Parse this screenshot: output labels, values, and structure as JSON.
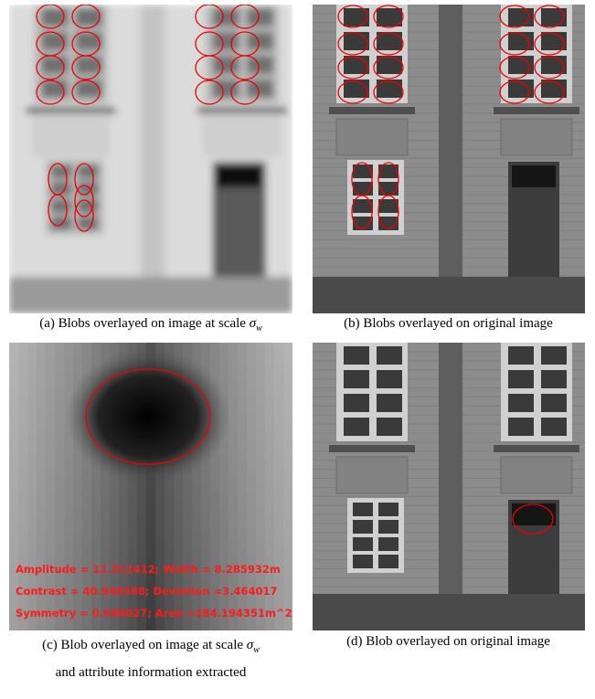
{
  "panels": [
    {
      "caption": {
        "text": "(a) Blobs overlayed on image at scale ",
        "symbol": "σ",
        "subscript": "w"
      }
    },
    {
      "caption": {
        "text": "(b) Blobs overlayed on original image"
      }
    },
    {
      "caption": {
        "text": "(c) Blob overlayed on image at scale ",
        "symbol": "σ",
        "subscript": "w",
        "line2": "and attribute information extracted"
      },
      "overlay_text": [
        "Amplitude = 11.311412; Width = 8.285932m",
        "Contrast = 40.946588; Deviation =3.464017",
        "Symmetry = 0.666027; Area =184.194351m^2"
      ]
    },
    {
      "caption": {
        "text": "(d) Blob overlayed on original image"
      }
    }
  ]
}
